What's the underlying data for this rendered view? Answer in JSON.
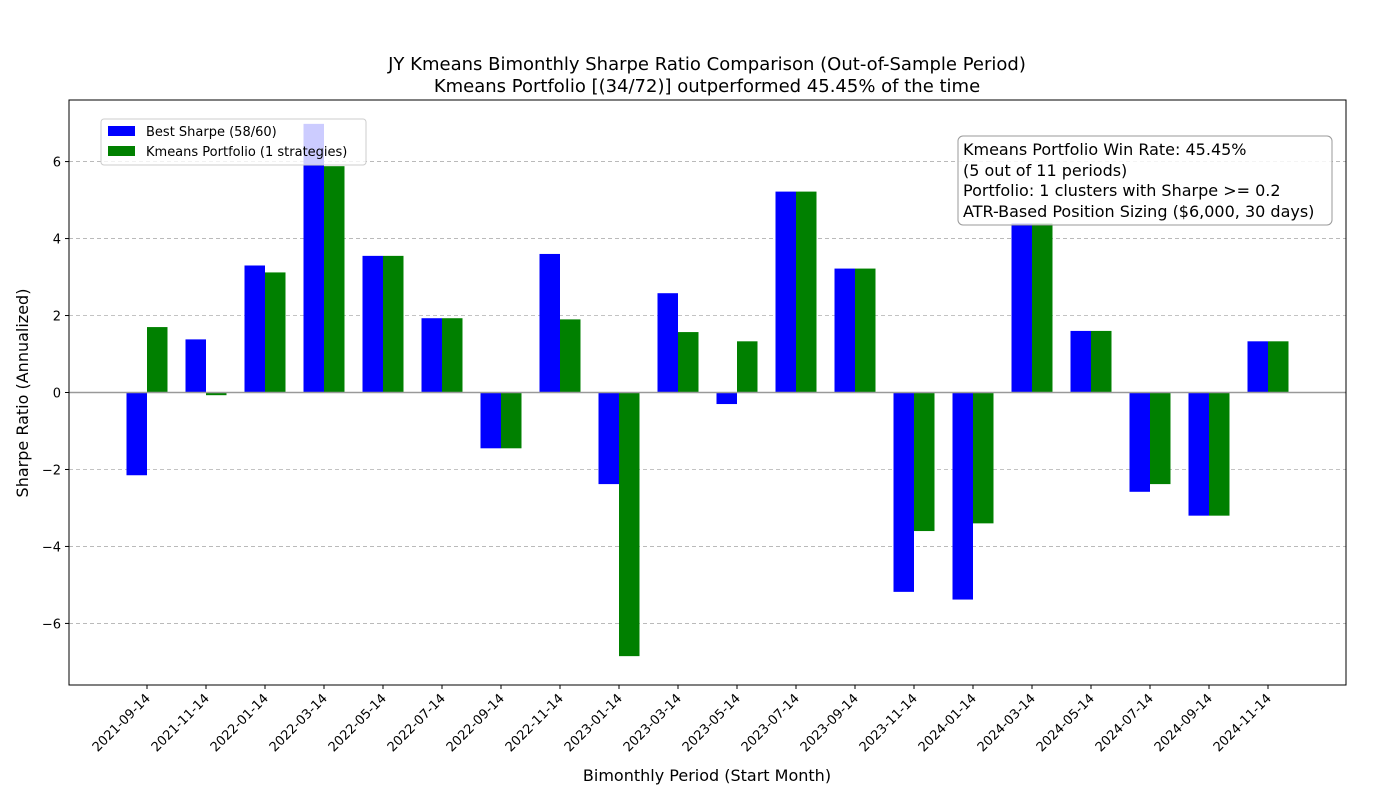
{
  "chart_data": {
    "type": "bar",
    "title_line1": "JY Kmeans Bimonthly Sharpe Ratio Comparison (Out-of-Sample Period)",
    "title_line2": "Kmeans Portfolio [(34/72)] outperformed 45.45% of the time",
    "xlabel": "Bimonthly Period (Start Month)",
    "ylabel": "Sharpe Ratio (Annualized)",
    "ylim": [
      -7.6,
      7.6
    ],
    "yticks": [
      -6,
      -4,
      -2,
      0,
      2,
      4,
      6
    ],
    "grid": "horizontal-dashed",
    "legend_position": "upper-left",
    "categories": [
      "2021-09-14",
      "2021-11-14",
      "2022-01-14",
      "2022-03-14",
      "2022-05-14",
      "2022-07-14",
      "2022-09-14",
      "2022-11-14",
      "2023-01-14",
      "2023-03-14",
      "2023-05-14",
      "2023-07-14",
      "2023-09-14",
      "2023-11-14",
      "2024-01-14",
      "2024-03-14",
      "2024-05-14",
      "2024-07-14",
      "2024-09-14",
      "2024-11-14"
    ],
    "series": [
      {
        "name": "Best Sharpe (58/60)",
        "color": "#0000ff",
        "values": [
          -2.15,
          1.38,
          3.3,
          6.98,
          3.55,
          1.93,
          -1.45,
          3.6,
          -2.38,
          2.58,
          -0.3,
          5.22,
          3.22,
          -5.18,
          -5.38,
          4.4,
          1.6,
          -2.58,
          -3.2,
          1.33
        ]
      },
      {
        "name": "Kmeans Portfolio (1 strategies)",
        "color": "#008000",
        "values": [
          1.7,
          -0.07,
          3.12,
          5.88,
          3.55,
          1.93,
          -1.45,
          1.9,
          -6.85,
          1.57,
          1.33,
          5.22,
          3.22,
          -3.6,
          -3.4,
          4.4,
          1.6,
          -2.38,
          -3.2,
          1.33
        ]
      }
    ],
    "annotation": {
      "lines": [
        "Kmeans Portfolio Win Rate: 45.45%",
        "(5 out of 11 periods)",
        "Portfolio: 1 clusters with Sharpe >= 0.2",
        "ATR-Based Position Sizing ($6,000, 30 days)"
      ]
    }
  }
}
